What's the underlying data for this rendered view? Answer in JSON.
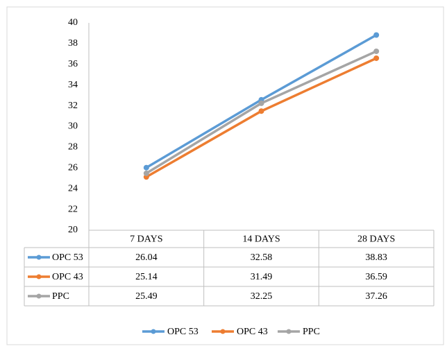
{
  "chart_data": {
    "type": "line",
    "categories": [
      "7 DAYS",
      "14 DAYS",
      "28 DAYS"
    ],
    "series": [
      {
        "name": "OPC 53",
        "color": "#5b9bd5",
        "values": [
          26.04,
          32.58,
          38.83
        ]
      },
      {
        "name": "OPC 43",
        "color": "#ed7d31",
        "values": [
          25.14,
          31.49,
          36.59
        ]
      },
      {
        "name": "PPC",
        "color": "#a5a5a5",
        "values": [
          25.49,
          32.25,
          37.26
        ]
      }
    ],
    "ylim": [
      20,
      40
    ],
    "yticks": [
      20,
      22,
      24,
      26,
      28,
      30,
      32,
      34,
      36,
      38,
      40
    ],
    "grid": false,
    "data_table": true,
    "legend": "bottom"
  }
}
